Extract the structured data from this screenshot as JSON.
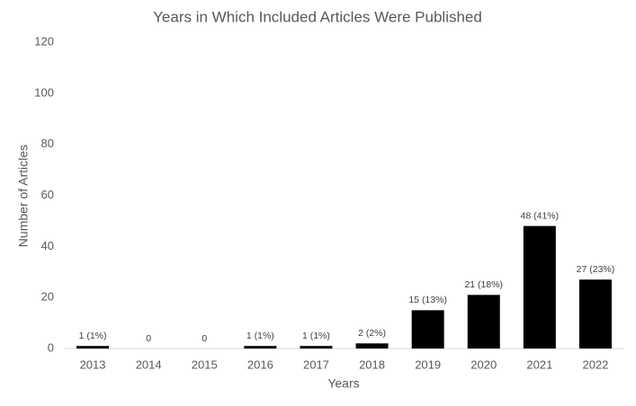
{
  "chart_data": {
    "type": "bar",
    "title": "Years in Which Included Articles Were Published",
    "x_label": "Years",
    "y_label": "Number of Articles",
    "categories": [
      "2013",
      "2014",
      "2015",
      "2016",
      "2017",
      "2018",
      "2019",
      "2020",
      "2021",
      "2022"
    ],
    "values": [
      1,
      0,
      0,
      1,
      1,
      2,
      15,
      21,
      48,
      27
    ],
    "value_labels": [
      "1 (1%)",
      "0",
      "0",
      "1 (1%)",
      "1 (1%)",
      "2 (2%)",
      "15 (13%)",
      "21 (18%)",
      "48 (41%)",
      "27 (23%)"
    ],
    "color": "#000000",
    "ylim": [
      0,
      120
    ],
    "yticks": [
      0,
      20,
      40,
      60,
      80,
      100,
      120
    ],
    "grid": false
  }
}
